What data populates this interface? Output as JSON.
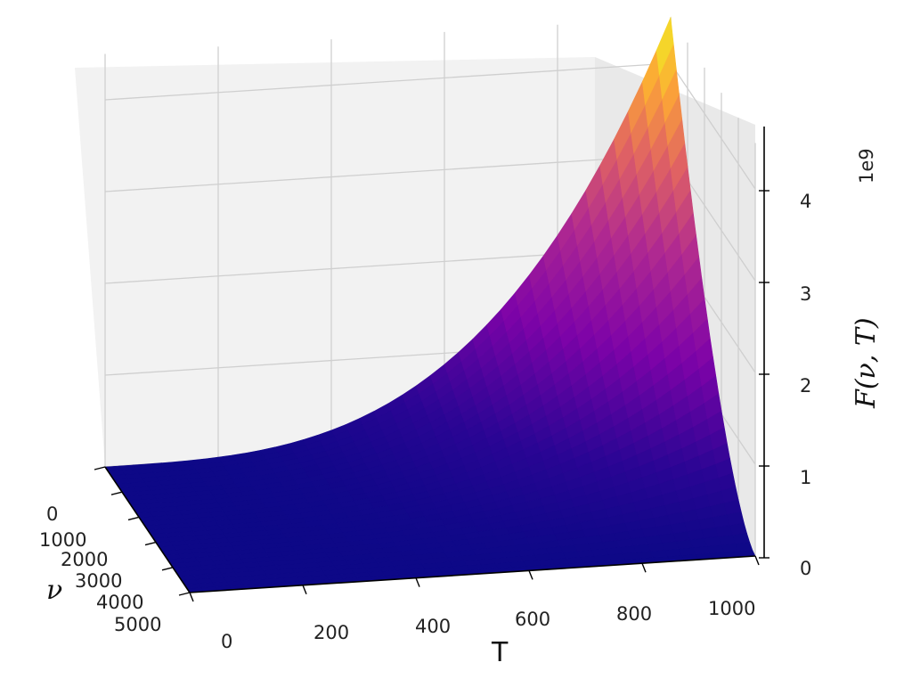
{
  "chart_data": {
    "type": "surface",
    "function_label": "F(ν, T)",
    "x_axis": {
      "label": "T",
      "range": [
        0,
        1000
      ],
      "ticks": [
        "0",
        "200",
        "400",
        "600",
        "800",
        "1000"
      ]
    },
    "y_axis": {
      "label": "ν",
      "range": [
        0,
        5000
      ],
      "ticks": [
        "0",
        "1000",
        "2000",
        "3000",
        "4000",
        "5000"
      ]
    },
    "z_axis": {
      "label": "F(ν, T)",
      "range": [
        0,
        4.5
      ],
      "ticks": [
        "0",
        "1",
        "2",
        "3",
        "4"
      ],
      "offset_text": "1e9",
      "max_value": 4.5
    },
    "colormap": "plasma",
    "grid": true
  }
}
